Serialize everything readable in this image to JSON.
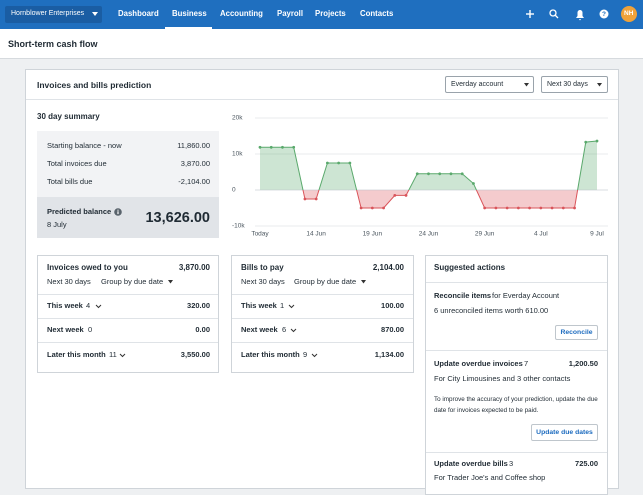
{
  "nav": {
    "org": "Hornblower Enterprises",
    "items": [
      "Dashboard",
      "Business",
      "Accounting",
      "Payroll",
      "Projects",
      "Contacts"
    ],
    "avatar": "NH"
  },
  "page_title": "Short-term cash flow",
  "card": {
    "title": "Invoices and bills prediction",
    "account": "Everday account",
    "period": "Next 30 days"
  },
  "summary": {
    "title": "30 day summary",
    "rows": [
      {
        "label": "Starting balance - now",
        "value": "11,860.00"
      },
      {
        "label": "Total invoices due",
        "value": "3,870.00"
      },
      {
        "label": "Total bills due",
        "value": "-2,104.00"
      }
    ],
    "predicted": {
      "label": "Predicted balance",
      "date": "8 July",
      "value": "13,626.00"
    }
  },
  "chart_data": {
    "type": "line",
    "categories": [
      "Today",
      null,
      null,
      null,
      null,
      "14 Jun",
      null,
      null,
      null,
      null,
      "19 Jun",
      null,
      null,
      null,
      null,
      "24 Jun",
      null,
      null,
      null,
      null,
      "29 Jun",
      null,
      null,
      null,
      null,
      "4 Jul",
      null,
      null,
      null,
      null,
      "9 Jul"
    ],
    "values": [
      11860,
      11860,
      11860,
      11860,
      -2500,
      -2500,
      7500,
      7500,
      7500,
      -5000,
      -5000,
      -5000,
      -1500,
      -1500,
      4500,
      4500,
      4500,
      4500,
      4500,
      1800,
      -5000,
      -5000,
      -5000,
      -5000,
      -5000,
      -5000,
      -5000,
      -5000,
      -5000,
      13300,
      13600
    ],
    "ylim": [
      -10000,
      20000
    ],
    "yticks": [
      {
        "value": 20000,
        "label": "20k"
      },
      {
        "value": 10000,
        "label": "10k"
      },
      0,
      {
        "value": -10000,
        "label": "-10k"
      }
    ],
    "grid": true,
    "color_above": "#5aa96c",
    "color_below": "#d9545a"
  },
  "invoices_panel": {
    "title": "Invoices owed to you",
    "total": "3,870.00",
    "period": "Next 30 days",
    "group_by": "Group by due date",
    "rows": [
      {
        "label": "This week",
        "count": 4,
        "amount": "320.00"
      },
      {
        "label": "Next week",
        "count": 0,
        "amount": "0.00"
      },
      {
        "label": "Later this month",
        "count": 11,
        "amount": "3,550.00"
      }
    ]
  },
  "bills_panel": {
    "title": "Bills to pay",
    "total": "2,104.00",
    "period": "Next 30 days",
    "group_by": "Group by due date",
    "rows": [
      {
        "label": "This week",
        "count": 1,
        "amount": "100.00"
      },
      {
        "label": "Next week",
        "count": 6,
        "amount": "870.00"
      },
      {
        "label": "Later this month",
        "count": 9,
        "amount": "1,134.00"
      }
    ]
  },
  "suggested_actions": {
    "title": "Suggested actions",
    "actions": [
      {
        "title": "Reconcile items",
        "context": "for Everday Account",
        "description": "6 unreconciled items worth 610.00",
        "button": "Reconcile"
      },
      {
        "title": "Update overdue invoices",
        "count": 7,
        "amount": "1,200.50",
        "description": "For City Limousines and 3 other contacts",
        "note": "To improve the accuracy of your prediction, update the due date for invoices expected to be paid.",
        "button": "Update due dates"
      },
      {
        "title": "Update overdue bills",
        "count": 3,
        "amount": "725.00",
        "description": "For Trader Joe's and Coffee shop"
      }
    ]
  }
}
